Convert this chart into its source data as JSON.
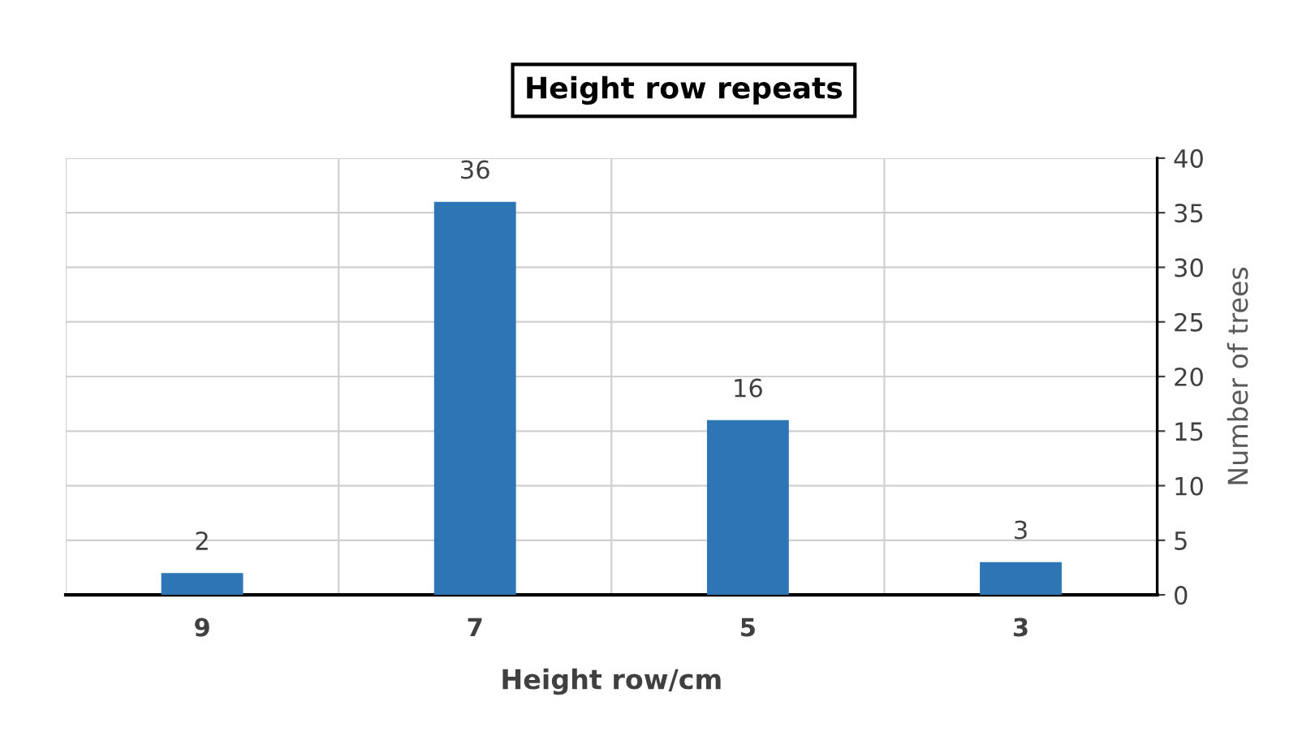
{
  "chart_data": {
    "type": "bar",
    "title": "Height row repeats",
    "xlabel": "Height row/cm",
    "ylabel": "Number of trees",
    "categories": [
      "9",
      "7",
      "5",
      "3"
    ],
    "values": [
      2,
      36,
      16,
      3
    ],
    "color": "#2e75b6",
    "ylim": [
      0,
      40
    ],
    "yticks": [
      0,
      5,
      10,
      15,
      20,
      25,
      30,
      35,
      40
    ],
    "grid": true,
    "data_labels": true
  }
}
